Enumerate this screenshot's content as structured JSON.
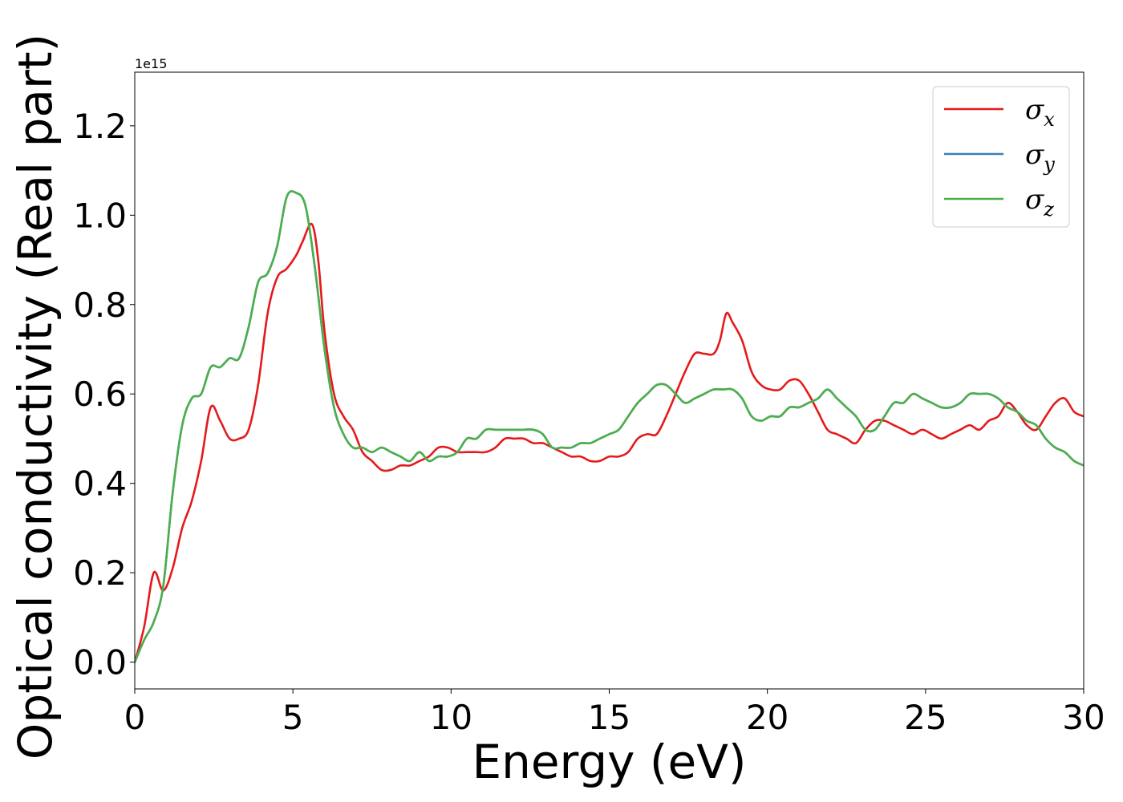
{
  "chart_data": {
    "type": "line",
    "title": "",
    "xlabel": "Energy (eV)",
    "ylabel": "Optical conductivity (Real part)",
    "y_offset_label": "1e15",
    "xlim": [
      0,
      30
    ],
    "ylim": [
      -0.06,
      1.32
    ],
    "x_ticks": [
      0,
      5,
      10,
      15,
      20,
      25,
      30
    ],
    "x_tick_labels": [
      "0",
      "5",
      "10",
      "15",
      "20",
      "25",
      "30"
    ],
    "y_ticks": [
      0.0,
      0.2,
      0.4,
      0.6,
      0.8,
      1.0,
      1.2
    ],
    "y_tick_labels": [
      "0.0",
      "0.2",
      "0.4",
      "0.6",
      "0.8",
      "1.0",
      "1.2"
    ],
    "grid": false,
    "legend_position": "top-right",
    "series": [
      {
        "name": "σx",
        "symbol": "σ",
        "subscript": "x",
        "color": "#e41a1c",
        "x": [
          0,
          0.3,
          0.6,
          0.9,
          1.2,
          1.5,
          1.8,
          2.1,
          2.4,
          2.7,
          3.0,
          3.3,
          3.6,
          3.9,
          4.2,
          4.5,
          4.8,
          5.1,
          5.3,
          5.6,
          5.8,
          6.0,
          6.3,
          6.6,
          6.9,
          7.2,
          7.5,
          7.8,
          8.1,
          8.4,
          8.7,
          9.0,
          9.3,
          9.6,
          9.9,
          10.2,
          10.5,
          10.8,
          11.1,
          11.4,
          11.7,
          12.0,
          12.3,
          12.6,
          12.9,
          13.2,
          13.5,
          13.8,
          14.1,
          14.4,
          14.7,
          15.0,
          15.3,
          15.6,
          15.9,
          16.2,
          16.5,
          16.8,
          17.1,
          17.4,
          17.7,
          18.0,
          18.3,
          18.5,
          18.7,
          18.9,
          19.2,
          19.5,
          19.8,
          20.1,
          20.4,
          20.7,
          21.0,
          21.3,
          21.6,
          21.9,
          22.2,
          22.5,
          22.8,
          23.1,
          23.4,
          23.7,
          24.0,
          24.3,
          24.6,
          24.9,
          25.2,
          25.5,
          25.8,
          26.1,
          26.4,
          26.7,
          27.0,
          27.3,
          27.6,
          27.9,
          28.2,
          28.5,
          28.8,
          29.1,
          29.4,
          29.7,
          30.0
        ],
        "y": [
          0.0,
          0.08,
          0.2,
          0.16,
          0.21,
          0.3,
          0.36,
          0.45,
          0.57,
          0.54,
          0.5,
          0.5,
          0.52,
          0.62,
          0.78,
          0.86,
          0.88,
          0.91,
          0.94,
          0.98,
          0.9,
          0.74,
          0.6,
          0.55,
          0.52,
          0.47,
          0.45,
          0.43,
          0.43,
          0.44,
          0.44,
          0.45,
          0.46,
          0.48,
          0.48,
          0.47,
          0.47,
          0.47,
          0.47,
          0.48,
          0.5,
          0.5,
          0.5,
          0.49,
          0.49,
          0.48,
          0.47,
          0.46,
          0.46,
          0.45,
          0.45,
          0.46,
          0.46,
          0.47,
          0.5,
          0.51,
          0.51,
          0.55,
          0.6,
          0.65,
          0.69,
          0.69,
          0.69,
          0.72,
          0.78,
          0.76,
          0.72,
          0.65,
          0.62,
          0.61,
          0.61,
          0.63,
          0.63,
          0.6,
          0.56,
          0.52,
          0.51,
          0.5,
          0.49,
          0.52,
          0.54,
          0.54,
          0.53,
          0.52,
          0.51,
          0.52,
          0.51,
          0.5,
          0.51,
          0.52,
          0.53,
          0.52,
          0.54,
          0.55,
          0.58,
          0.56,
          0.53,
          0.52,
          0.55,
          0.58,
          0.59,
          0.56,
          0.55
        ]
      },
      {
        "name": "σy",
        "symbol": "σ",
        "subscript": "y",
        "color": "#377eb8",
        "x": [
          0,
          0.3,
          0.6,
          0.9,
          1.2,
          1.5,
          1.8,
          2.1,
          2.4,
          2.7,
          3.0,
          3.3,
          3.6,
          3.9,
          4.2,
          4.5,
          4.8,
          5.1,
          5.4,
          5.7,
          6.0,
          6.3,
          6.6,
          6.9,
          7.2,
          7.5,
          7.8,
          8.1,
          8.4,
          8.7,
          9.0,
          9.3,
          9.6,
          9.9,
          10.2,
          10.5,
          10.8,
          11.1,
          11.4,
          11.7,
          12.0,
          12.3,
          12.6,
          12.9,
          13.2,
          13.5,
          13.8,
          14.1,
          14.4,
          14.7,
          15.0,
          15.3,
          15.6,
          15.9,
          16.2,
          16.5,
          16.8,
          17.1,
          17.4,
          17.7,
          18.0,
          18.3,
          18.6,
          18.9,
          19.2,
          19.5,
          19.8,
          20.1,
          20.4,
          20.7,
          21.0,
          21.3,
          21.6,
          21.9,
          22.2,
          22.5,
          22.8,
          23.1,
          23.4,
          23.7,
          24.0,
          24.3,
          24.6,
          24.9,
          25.2,
          25.5,
          25.8,
          26.1,
          26.4,
          26.7,
          27.0,
          27.3,
          27.6,
          27.9,
          28.2,
          28.5,
          28.8,
          29.1,
          29.4,
          29.7,
          30.0
        ],
        "y": [
          0.0,
          0.05,
          0.09,
          0.17,
          0.38,
          0.53,
          0.59,
          0.6,
          0.66,
          0.66,
          0.68,
          0.68,
          0.75,
          0.85,
          0.87,
          0.93,
          1.04,
          1.05,
          1.02,
          0.88,
          0.7,
          0.57,
          0.51,
          0.48,
          0.48,
          0.47,
          0.48,
          0.47,
          0.46,
          0.45,
          0.47,
          0.45,
          0.46,
          0.46,
          0.47,
          0.5,
          0.5,
          0.52,
          0.52,
          0.52,
          0.52,
          0.52,
          0.52,
          0.51,
          0.48,
          0.48,
          0.48,
          0.49,
          0.49,
          0.5,
          0.51,
          0.52,
          0.55,
          0.58,
          0.6,
          0.62,
          0.62,
          0.6,
          0.58,
          0.59,
          0.6,
          0.61,
          0.61,
          0.61,
          0.59,
          0.55,
          0.54,
          0.55,
          0.55,
          0.57,
          0.57,
          0.58,
          0.59,
          0.61,
          0.59,
          0.57,
          0.55,
          0.52,
          0.52,
          0.55,
          0.58,
          0.58,
          0.6,
          0.59,
          0.58,
          0.57,
          0.57,
          0.58,
          0.6,
          0.6,
          0.6,
          0.59,
          0.57,
          0.56,
          0.54,
          0.53,
          0.5,
          0.48,
          0.47,
          0.45,
          0.44
        ]
      },
      {
        "name": "σz",
        "symbol": "σ",
        "subscript": "z",
        "color": "#4daf4a",
        "x": [
          0,
          0.3,
          0.6,
          0.9,
          1.2,
          1.5,
          1.8,
          2.1,
          2.4,
          2.7,
          3.0,
          3.3,
          3.6,
          3.9,
          4.2,
          4.5,
          4.8,
          5.1,
          5.4,
          5.7,
          6.0,
          6.3,
          6.6,
          6.9,
          7.2,
          7.5,
          7.8,
          8.1,
          8.4,
          8.7,
          9.0,
          9.3,
          9.6,
          9.9,
          10.2,
          10.5,
          10.8,
          11.1,
          11.4,
          11.7,
          12.0,
          12.3,
          12.6,
          12.9,
          13.2,
          13.5,
          13.8,
          14.1,
          14.4,
          14.7,
          15.0,
          15.3,
          15.6,
          15.9,
          16.2,
          16.5,
          16.8,
          17.1,
          17.4,
          17.7,
          18.0,
          18.3,
          18.6,
          18.9,
          19.2,
          19.5,
          19.8,
          20.1,
          20.4,
          20.7,
          21.0,
          21.3,
          21.6,
          21.9,
          22.2,
          22.5,
          22.8,
          23.1,
          23.4,
          23.7,
          24.0,
          24.3,
          24.6,
          24.9,
          25.2,
          25.5,
          25.8,
          26.1,
          26.4,
          26.7,
          27.0,
          27.3,
          27.6,
          27.9,
          28.2,
          28.5,
          28.8,
          29.1,
          29.4,
          29.7,
          30.0
        ],
        "y": [
          0.0,
          0.05,
          0.09,
          0.17,
          0.38,
          0.53,
          0.59,
          0.6,
          0.66,
          0.66,
          0.68,
          0.68,
          0.75,
          0.85,
          0.87,
          0.93,
          1.04,
          1.05,
          1.02,
          0.88,
          0.7,
          0.57,
          0.51,
          0.48,
          0.48,
          0.47,
          0.48,
          0.47,
          0.46,
          0.45,
          0.47,
          0.45,
          0.46,
          0.46,
          0.47,
          0.5,
          0.5,
          0.52,
          0.52,
          0.52,
          0.52,
          0.52,
          0.52,
          0.51,
          0.48,
          0.48,
          0.48,
          0.49,
          0.49,
          0.5,
          0.51,
          0.52,
          0.55,
          0.58,
          0.6,
          0.62,
          0.62,
          0.6,
          0.58,
          0.59,
          0.6,
          0.61,
          0.61,
          0.61,
          0.59,
          0.55,
          0.54,
          0.55,
          0.55,
          0.57,
          0.57,
          0.58,
          0.59,
          0.61,
          0.59,
          0.57,
          0.55,
          0.52,
          0.52,
          0.55,
          0.58,
          0.58,
          0.6,
          0.59,
          0.58,
          0.57,
          0.57,
          0.58,
          0.6,
          0.6,
          0.6,
          0.59,
          0.57,
          0.56,
          0.54,
          0.53,
          0.5,
          0.48,
          0.47,
          0.45,
          0.44
        ]
      }
    ]
  }
}
